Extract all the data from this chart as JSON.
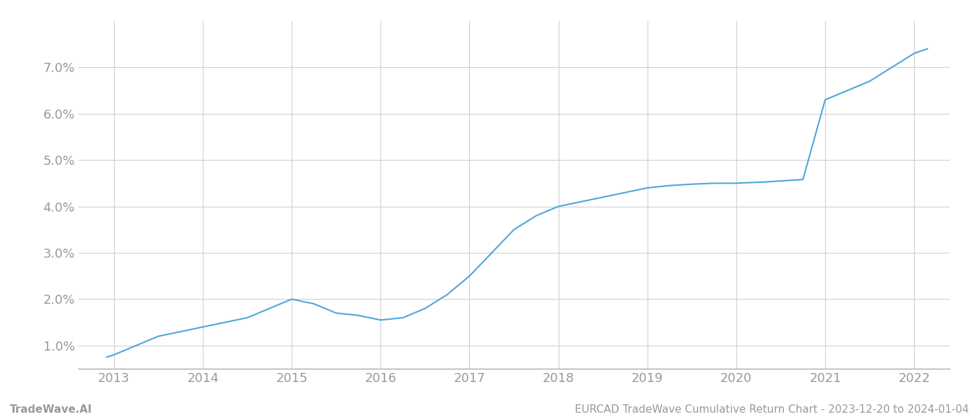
{
  "x_values": [
    2012.92,
    2013.0,
    2013.25,
    2013.5,
    2013.75,
    2014.0,
    2014.25,
    2014.5,
    2014.75,
    2015.0,
    2015.25,
    2015.5,
    2015.75,
    2016.0,
    2016.25,
    2016.5,
    2016.75,
    2017.0,
    2017.25,
    2017.5,
    2017.75,
    2018.0,
    2018.25,
    2018.5,
    2018.75,
    2019.0,
    2019.25,
    2019.5,
    2019.75,
    2020.0,
    2020.1,
    2020.25,
    2020.35,
    2020.5,
    2020.75,
    2021.0,
    2021.25,
    2021.5,
    2021.75,
    2022.0,
    2022.15
  ],
  "y_values": [
    0.0075,
    0.008,
    0.01,
    0.012,
    0.013,
    0.014,
    0.015,
    0.016,
    0.018,
    0.02,
    0.019,
    0.017,
    0.0165,
    0.0155,
    0.016,
    0.018,
    0.021,
    0.025,
    0.03,
    0.035,
    0.038,
    0.04,
    0.041,
    0.042,
    0.043,
    0.044,
    0.0445,
    0.0448,
    0.045,
    0.045,
    0.0451,
    0.0452,
    0.0453,
    0.0455,
    0.0458,
    0.063,
    0.065,
    0.067,
    0.07,
    0.073,
    0.074
  ],
  "line_color": "#4da6d9",
  "line_width": 1.5,
  "background_color": "#ffffff",
  "grid_color": "#d0d0d0",
  "footer_left": "TradeWave.AI",
  "footer_right": "EURCAD TradeWave Cumulative Return Chart - 2023-12-20 to 2024-01-04",
  "xlim": [
    2012.6,
    2022.4
  ],
  "ylim": [
    0.005,
    0.08
  ],
  "yticks": [
    0.01,
    0.02,
    0.03,
    0.04,
    0.05,
    0.06,
    0.07
  ],
  "xticks": [
    2013,
    2014,
    2015,
    2016,
    2017,
    2018,
    2019,
    2020,
    2021,
    2022
  ],
  "tick_label_color": "#999999",
  "tick_fontsize": 13,
  "footer_fontsize": 11,
  "spine_color": "#aaaaaa"
}
